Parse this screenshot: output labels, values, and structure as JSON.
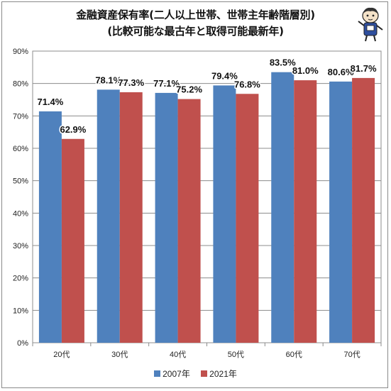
{
  "chart_data": {
    "type": "bar",
    "title": "金融資産保有率(二人以上世帯、世帯主年齢階層別)",
    "subtitle": "(比較可能な最古年と取得可能最新年)",
    "categories": [
      "20代",
      "30代",
      "40代",
      "50代",
      "60代",
      "70代"
    ],
    "series": [
      {
        "name": "2007年",
        "values": [
          71.4,
          78.1,
          77.1,
          79.4,
          83.5,
          80.6
        ],
        "labels": [
          "71.4%",
          "78.1%",
          "77.1%",
          "79.4%",
          "83.5%",
          "80.6%"
        ],
        "color": "#4f81bd"
      },
      {
        "name": "2021年",
        "values": [
          62.9,
          77.3,
          75.2,
          76.8,
          81.0,
          81.7
        ],
        "labels": [
          "62.9%",
          "77.3%",
          "75.2%",
          "76.8%",
          "81.0%",
          "81.7%"
        ],
        "color": "#c0504d"
      }
    ],
    "y_ticks": [
      "0%",
      "10%",
      "20%",
      "30%",
      "40%",
      "50%",
      "60%",
      "70%",
      "80%",
      "90%"
    ],
    "ylim": [
      0,
      90
    ],
    "grid": true,
    "legend_position": "bottom"
  },
  "icons": {
    "mascot": "mascot-character-icon"
  }
}
